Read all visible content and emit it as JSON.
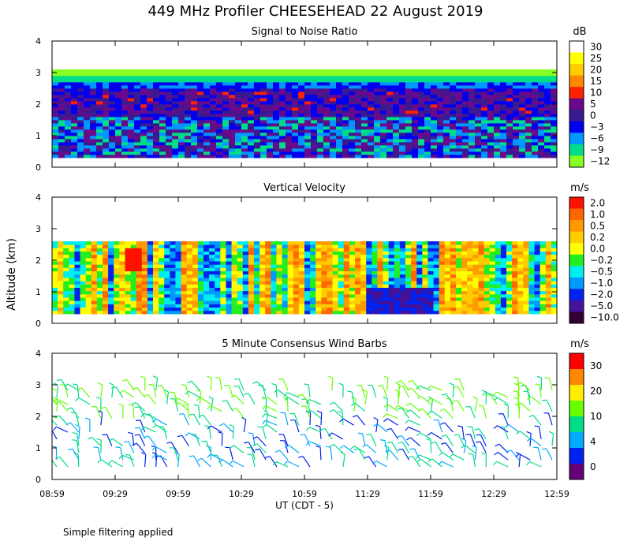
{
  "title": "449 MHz Profiler CHEESEHEAD 22 August 2019",
  "footer_note": "Simple filtering applied",
  "y_axis_label": "Altitude (km)",
  "x_axis_label": "UT  (CDT - 5)",
  "time_ticks": [
    "08:59",
    "09:29",
    "09:59",
    "10:29",
    "10:59",
    "11:29",
    "11:59",
    "12:29",
    "12:59"
  ],
  "chart_data": [
    {
      "type": "heatmap",
      "title": "Signal to Noise Ratio",
      "xlabel": "UT  (CDT - 5)",
      "ylabel": "Altitude (km)",
      "ylim": [
        0,
        4
      ],
      "y_ticks": [
        "0",
        "1",
        "2",
        "3",
        "4"
      ],
      "x_ticks": [
        "08:59",
        "09:29",
        "09:59",
        "10:29",
        "10:59",
        "11:29",
        "11:59",
        "12:29",
        "12:59"
      ],
      "colorbar": {
        "unit": "dB",
        "labels": [
          "30",
          "25",
          "20",
          "15",
          "10",
          "5",
          "0",
          "−3",
          "−6",
          "−9",
          "−12"
        ],
        "colors": [
          "#ffffff",
          "#ffff00",
          "#ffcc00",
          "#ff8800",
          "#ff2200",
          "#6a0a8a",
          "#3a1a90",
          "#0000ee",
          "#0096ff",
          "#00dd88",
          "#88ff22"
        ]
      }
    },
    {
      "type": "heatmap",
      "title": "Vertical Velocity",
      "ylim": [
        0,
        4
      ],
      "y_ticks": [
        "0",
        "1",
        "2",
        "3",
        "4"
      ],
      "colorbar": {
        "unit": "m/s",
        "labels": [
          "2.0",
          "1.0",
          "0.5",
          "0.2",
          "0.0",
          "−0.2",
          "−0.5",
          "−1.0",
          "−2.0",
          "−5.0",
          "−10.0"
        ],
        "colors": [
          "#ff1100",
          "#ff6600",
          "#ff9900",
          "#ffcc00",
          "#ffff00",
          "#22ee22",
          "#00eeee",
          "#0099ff",
          "#0022ee",
          "#44139a",
          "#330033"
        ]
      }
    },
    {
      "type": "scatter",
      "title": "5 Minute Consensus Wind Barbs",
      "ylim": [
        0,
        4
      ],
      "y_ticks": [
        "0",
        "1",
        "2",
        "3",
        "4"
      ],
      "colorbar": {
        "unit": "m/s",
        "labels": [
          "30",
          "20",
          "10",
          "4",
          "0"
        ],
        "colors": [
          "#ff0000",
          "#ff8800",
          "#ffee00",
          "#66ff00",
          "#00dd88",
          "#00aaff",
          "#0022ee",
          "#660077"
        ]
      }
    }
  ]
}
